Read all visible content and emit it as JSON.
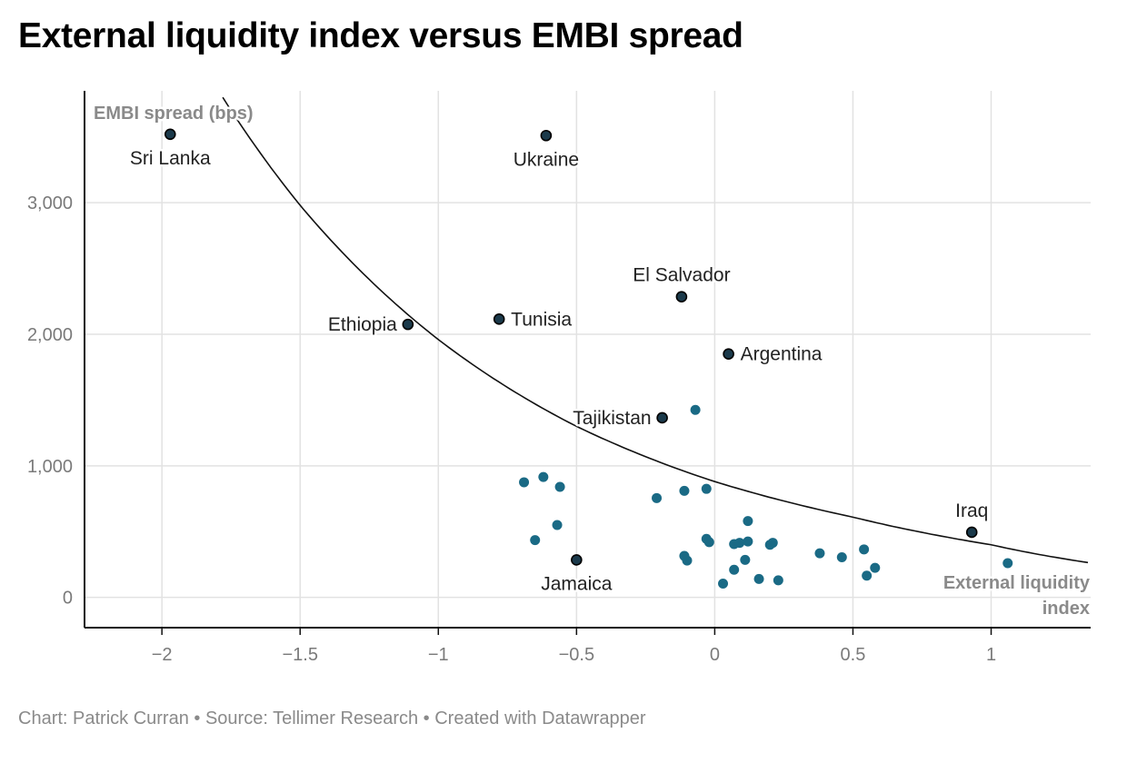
{
  "title": "External liquidity index versus EMBI spread",
  "footer": "Chart: Patrick Curran • Source: Tellimer Research • Created with Datawrapper",
  "colors": {
    "point": "#1a6a85",
    "highlight": "#1b3a4b",
    "curve": "#111111"
  },
  "chart_data": {
    "type": "scatter",
    "xlabel": "External liquidity index",
    "ylabel": "EMBI spread (bps)",
    "xlim": [
      -2.28,
      1.36
    ],
    "ylim": [
      -230,
      3850
    ],
    "x_ticks": [
      {
        "v": -2,
        "label": "−2"
      },
      {
        "v": -1.5,
        "label": "−1.5"
      },
      {
        "v": -1,
        "label": "−1"
      },
      {
        "v": -0.5,
        "label": "−0.5"
      },
      {
        "v": 0,
        "label": "0"
      },
      {
        "v": 0.5,
        "label": "0.5"
      },
      {
        "v": 1,
        "label": "1"
      }
    ],
    "y_ticks": [
      {
        "v": 0,
        "label": "0"
      },
      {
        "v": 1000,
        "label": "1,000"
      },
      {
        "v": 2000,
        "label": "2,000"
      },
      {
        "v": 3000,
        "label": "3,000"
      }
    ],
    "labeled_points": [
      {
        "name": "Sri Lanka",
        "x": -1.97,
        "y": 3520,
        "pos": "below"
      },
      {
        "name": "Ukraine",
        "x": -0.61,
        "y": 3510,
        "pos": "below"
      },
      {
        "name": "El Salvador",
        "x": -0.12,
        "y": 2285,
        "pos": "above"
      },
      {
        "name": "Tunisia",
        "x": -0.78,
        "y": 2115,
        "pos": "right"
      },
      {
        "name": "Ethiopia",
        "x": -1.11,
        "y": 2075,
        "pos": "left"
      },
      {
        "name": "Argentina",
        "x": 0.05,
        "y": 1850,
        "pos": "right"
      },
      {
        "name": "Tajikistan",
        "x": -0.19,
        "y": 1365,
        "pos": "left"
      },
      {
        "name": "Iraq",
        "x": 0.93,
        "y": 495,
        "pos": "above"
      },
      {
        "name": "Jamaica",
        "x": -0.5,
        "y": 285,
        "pos": "below"
      }
    ],
    "other_points": [
      {
        "x": -0.69,
        "y": 875
      },
      {
        "x": -0.62,
        "y": 915
      },
      {
        "x": -0.56,
        "y": 840
      },
      {
        "x": -0.57,
        "y": 550
      },
      {
        "x": -0.65,
        "y": 435
      },
      {
        "x": -0.07,
        "y": 1425
      },
      {
        "x": -0.21,
        "y": 755
      },
      {
        "x": -0.11,
        "y": 810
      },
      {
        "x": -0.03,
        "y": 825
      },
      {
        "x": -0.11,
        "y": 315
      },
      {
        "x": -0.1,
        "y": 280
      },
      {
        "x": -0.03,
        "y": 445
      },
      {
        "x": -0.02,
        "y": 420
      },
      {
        "x": 0.07,
        "y": 405
      },
      {
        "x": 0.09,
        "y": 415
      },
      {
        "x": 0.12,
        "y": 425
      },
      {
        "x": 0.12,
        "y": 580
      },
      {
        "x": 0.11,
        "y": 285
      },
      {
        "x": 0.07,
        "y": 210
      },
      {
        "x": 0.03,
        "y": 105
      },
      {
        "x": 0.16,
        "y": 140
      },
      {
        "x": 0.2,
        "y": 400
      },
      {
        "x": 0.21,
        "y": 415
      },
      {
        "x": 0.23,
        "y": 130
      },
      {
        "x": 0.38,
        "y": 335
      },
      {
        "x": 0.46,
        "y": 305
      },
      {
        "x": 0.54,
        "y": 365
      },
      {
        "x": 0.55,
        "y": 165
      },
      {
        "x": 0.58,
        "y": 225
      },
      {
        "x": 1.06,
        "y": 260
      }
    ],
    "trendline": {
      "type": "exponential",
      "points": [
        {
          "x": -1.78,
          "y": 3800
        },
        {
          "x": -1.5,
          "y": 2980
        },
        {
          "x": -1.0,
          "y": 1960
        },
        {
          "x": -0.5,
          "y": 1300
        },
        {
          "x": 0.0,
          "y": 880
        },
        {
          "x": 0.5,
          "y": 610
        },
        {
          "x": 1.0,
          "y": 400
        },
        {
          "x": 1.35,
          "y": 265
        }
      ]
    }
  }
}
